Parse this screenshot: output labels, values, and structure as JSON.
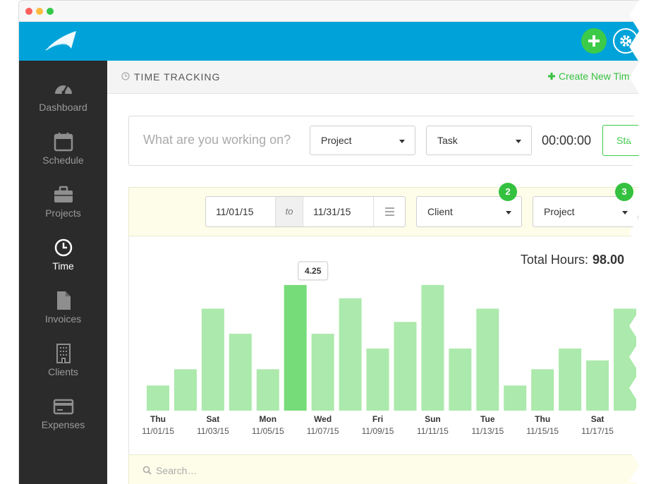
{
  "nav": [
    "Dashboard",
    "Schedule",
    "Projects",
    "Time",
    "Invoices",
    "Clients",
    "Expenses"
  ],
  "nav_active": 3,
  "header": {
    "title": "TIME TRACKING",
    "create_button": "Create New Time"
  },
  "timer": {
    "placeholder": "What are you working on?",
    "project": "Project",
    "task": "Task",
    "time": "00:00:00",
    "start": "Start"
  },
  "filters": {
    "date_from": "11/01/15",
    "date_separator": "to",
    "date_to": "11/31/15",
    "client": "Client",
    "client_badge": "2",
    "project": "Project",
    "project_badge": "3"
  },
  "chart_data": {
    "type": "bar",
    "total_label": "Total Hours:",
    "total_value": "98.00",
    "categories": [
      "Thu",
      null,
      "Sat",
      null,
      "Mon",
      null,
      "Wed",
      null,
      "Fri",
      null,
      "Sun",
      null,
      "Tue",
      null,
      "Thu",
      null,
      "Sat",
      null
    ],
    "dates": [
      "11/01/15",
      null,
      "11/03/15",
      null,
      "11/05/15",
      null,
      "11/07/15",
      null,
      "11/09/15",
      null,
      "11/11/15",
      null,
      "11/13/15",
      null,
      "11/15/15",
      null,
      "11/17/15",
      null
    ],
    "values": [
      0.85,
      1.4,
      3.45,
      2.6,
      1.4,
      4.25,
      2.6,
      3.8,
      2.1,
      3.0,
      4.25,
      2.1,
      3.45,
      0.85,
      1.4,
      2.1,
      1.7,
      3.45
    ],
    "color": "#ace9ac",
    "active_color": "#76dc79",
    "active_index": 5,
    "ylim": [
      0,
      5
    ]
  },
  "search": "Search…"
}
